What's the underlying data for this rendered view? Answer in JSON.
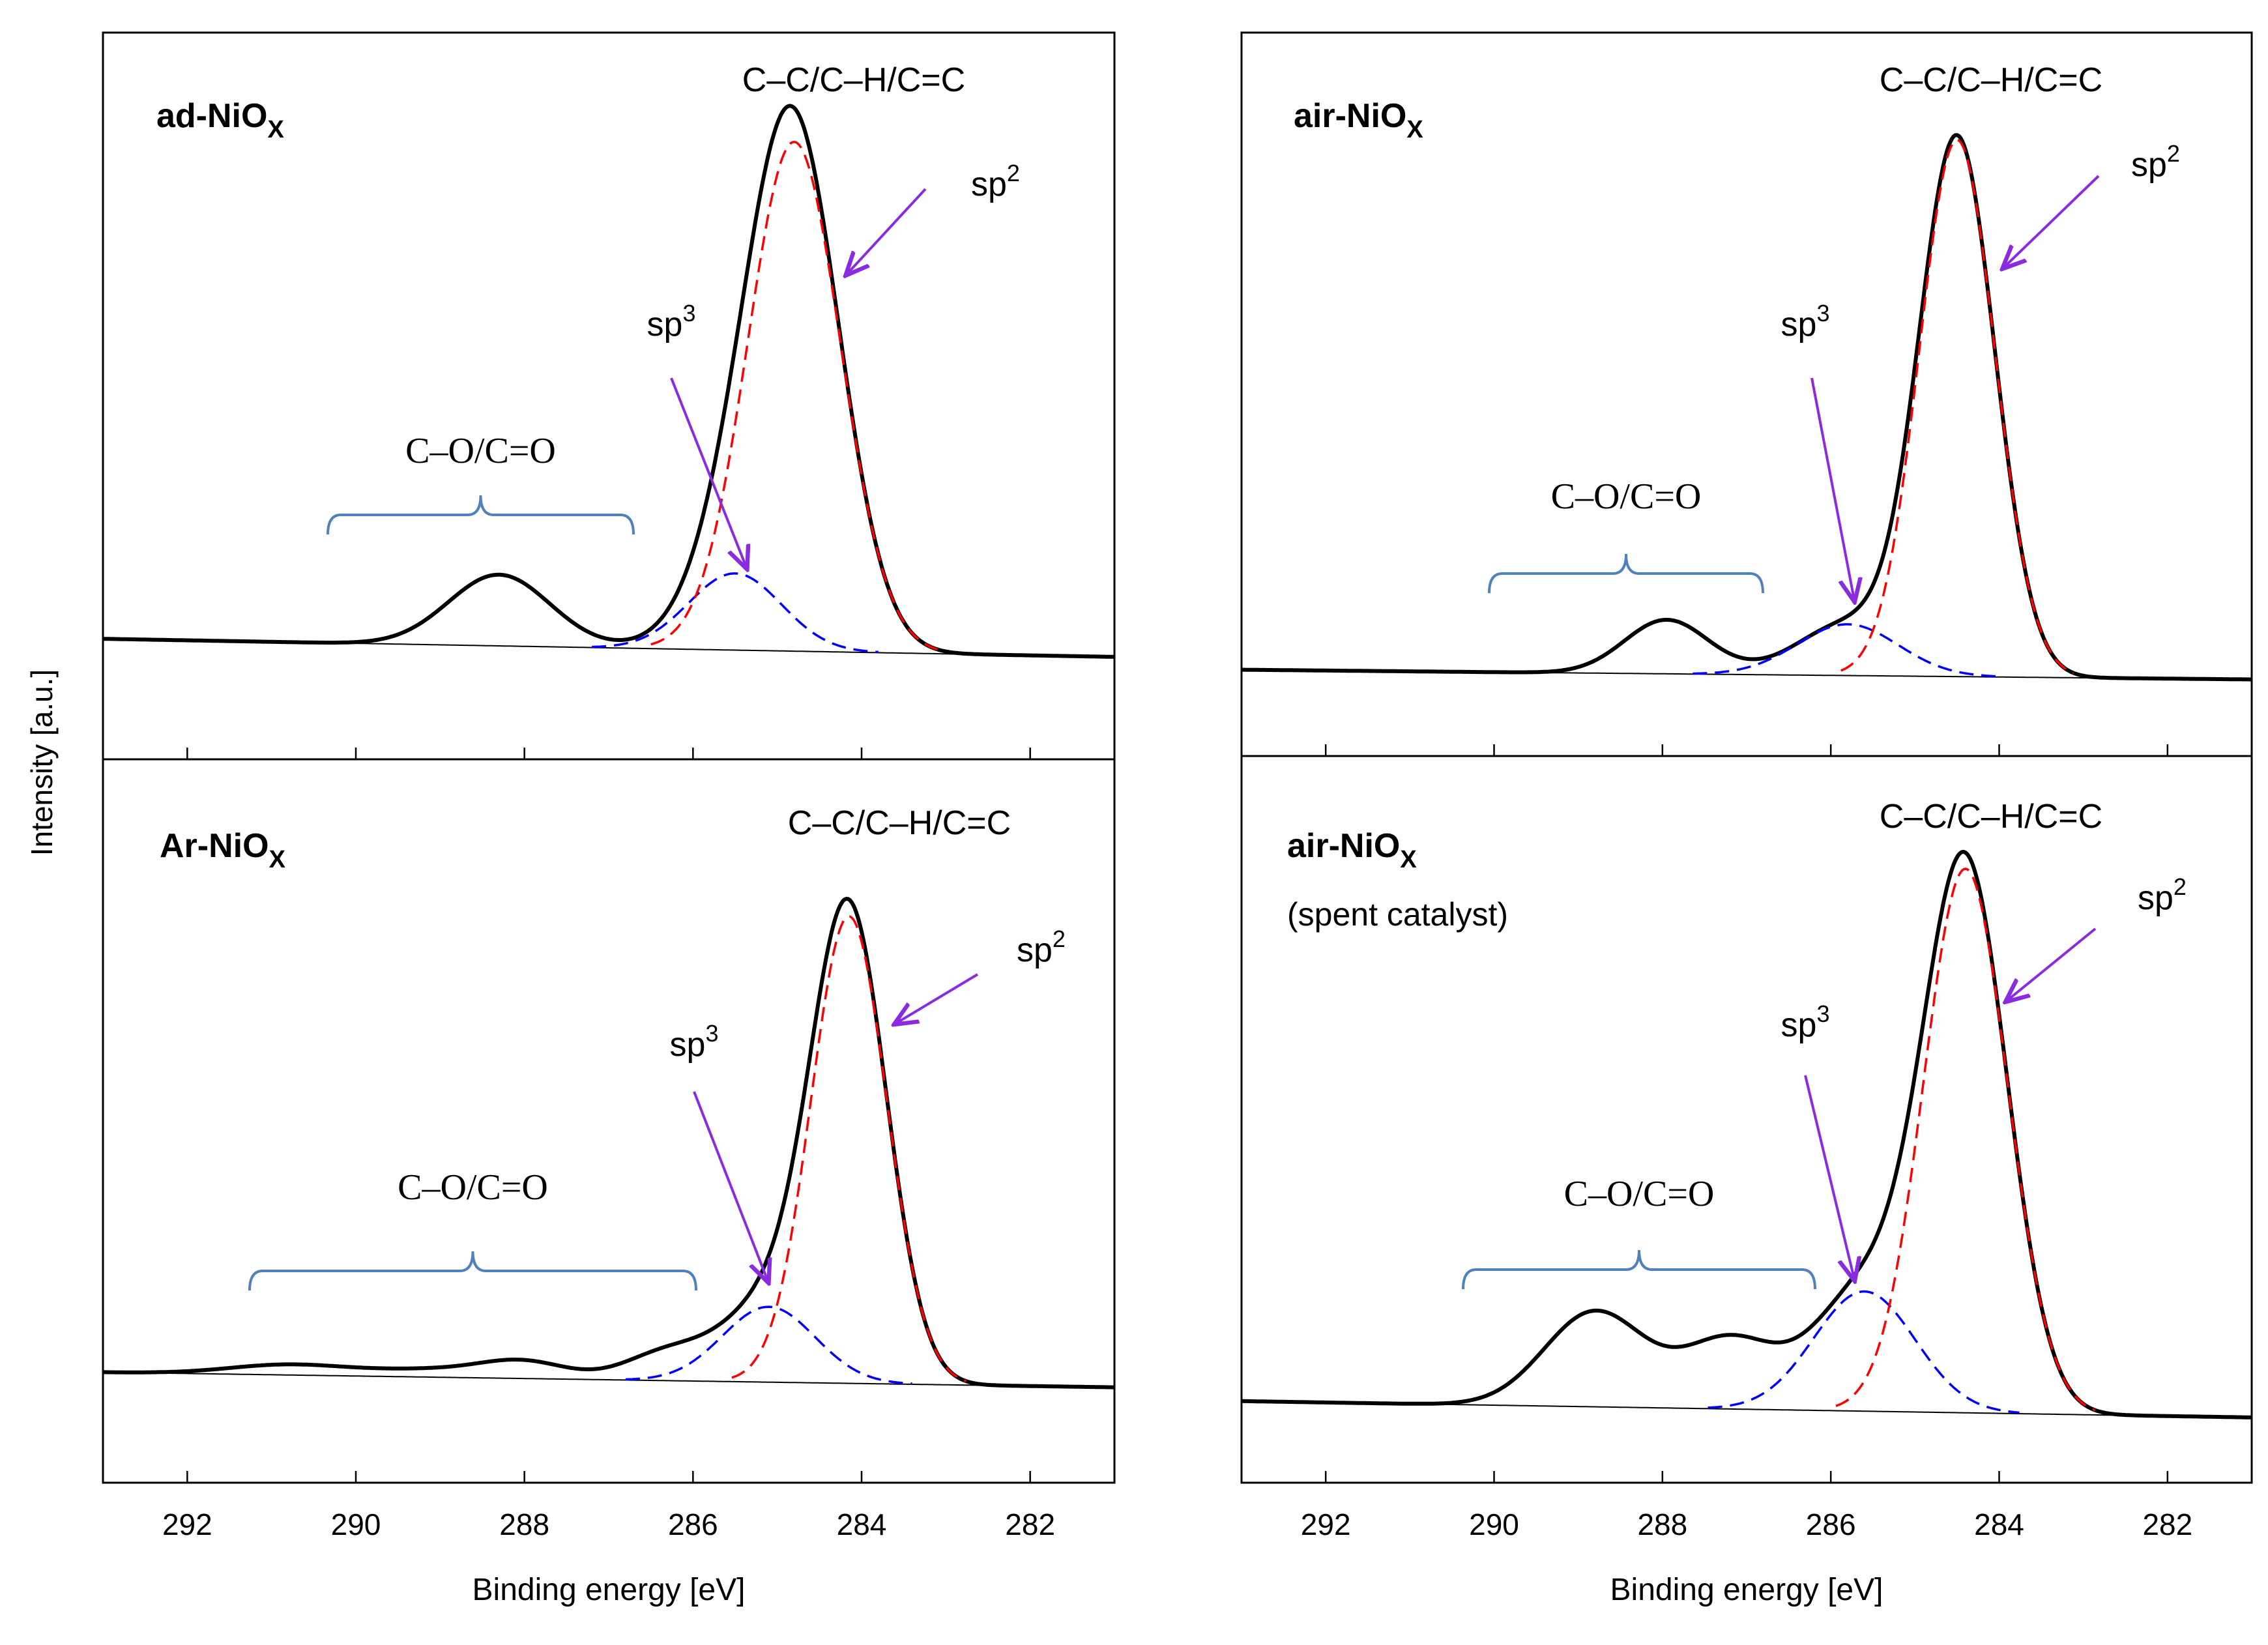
{
  "figure": {
    "ylabel": "Intensity [a.u.]",
    "xlabel": "Binding energy [eV]",
    "tick_labels": [
      "292",
      "290",
      "288",
      "286",
      "284",
      "282"
    ],
    "colors": {
      "total": "#000000",
      "sp2": "#ff0000",
      "sp3": "#0000ff",
      "background": "#000000",
      "arrow": "#8a2be2",
      "bracket": "#4f81bd"
    }
  },
  "chart_data": [
    {
      "type": "line",
      "id": "ad",
      "sample_label": "ad-NiO",
      "sample_sub": "X",
      "sample_extra": "",
      "peak_label": "C–C/C–H/C=C",
      "co_label": "C–O/C=O",
      "sp2_label": "sp",
      "sp2_sup": "2",
      "sp3_label": "sp",
      "sp3_sup": "3",
      "xlabel": "",
      "xlim": [
        293,
        281
      ],
      "ylim": [
        -0.22,
        1.0
      ],
      "baseline_start": 0.0,
      "baseline_end": -0.033,
      "series": [
        {
          "name": "sp2",
          "center": 284.8,
          "height": 0.93,
          "sigma": 0.55
        },
        {
          "name": "sp3",
          "center": 285.5,
          "height": 0.14,
          "sigma": 0.55
        },
        {
          "name": "C-O/C=O",
          "center": 288.3,
          "height": 0.13,
          "sigma": 0.6
        }
      ]
    },
    {
      "type": "line",
      "id": "air",
      "sample_label": "air-NiO",
      "sample_sub": "X",
      "sample_extra": "",
      "peak_label": "C–C/C–H/C=C",
      "co_label": "C–O/C=O",
      "sp2_label": "sp",
      "sp2_sup": "2",
      "sp3_label": "sp",
      "sp3_sup": "3",
      "xlabel": "Binding energy [eV]",
      "xlim": [
        293,
        281
      ],
      "ylim": [
        -0.16,
        1.0
      ],
      "baseline_start": 0.0,
      "baseline_end": -0.018,
      "series": [
        {
          "name": "sp2",
          "center": 284.5,
          "height": 0.995,
          "sigma": 0.45
        },
        {
          "name": "sp3",
          "center": 285.8,
          "height": 0.095,
          "sigma": 0.6
        },
        {
          "name": "C-O/C=O",
          "center": 287.95,
          "height": 0.1,
          "sigma": 0.5
        }
      ]
    },
    {
      "type": "line",
      "id": "ar",
      "sample_label": "Ar-NiO",
      "sample_sub": "X",
      "sample_extra": "",
      "peak_label": "C–C/C–H/C=C",
      "co_label": "C–O/C=O",
      "sp2_label": "sp",
      "sp2_sup": "2",
      "sp3_label": "sp",
      "sp3_sup": "3",
      "xlabel": "Binding energy [eV]",
      "xlim": [
        293,
        281
      ],
      "ylim": [
        -0.22,
        1.0
      ],
      "baseline_start": 0.0,
      "baseline_end": -0.03,
      "series": [
        {
          "name": "sp2",
          "center": 284.15,
          "height": 0.93,
          "sigma": 0.45
        },
        {
          "name": "sp3",
          "center": 285.1,
          "height": 0.15,
          "sigma": 0.55
        },
        {
          "name": "C-O/C=O",
          "center": 288.0,
          "height": 0.03,
          "sigma": 0.5
        },
        {
          "name": "C-O/C=O",
          "center": 290.8,
          "height": 0.02,
          "sigma": 0.7
        },
        {
          "name": "C-O/C=O",
          "center": 286.3,
          "height": 0.055,
          "sigma": 0.5
        },
        {
          "name": "C-O/C=O",
          "center": 289.0,
          "height": 0.015,
          "sigma": 0.8
        }
      ]
    },
    {
      "type": "line",
      "id": "spent",
      "sample_label": "air-NiO",
      "sample_sub": "X",
      "sample_extra": "(spent catalyst)",
      "peak_label": "C–C/C–H/C=C",
      "co_label": "C–O/C=O",
      "sp2_label": "sp",
      "sp2_sup": "2",
      "sp3_label": "sp",
      "sp3_sup": "3",
      "xlabel": "Binding energy [eV]",
      "xlim": [
        293,
        281
      ],
      "ylim": [
        -0.15,
        1.0
      ],
      "baseline_start": 0.0,
      "baseline_end": -0.03,
      "series": [
        {
          "name": "sp2",
          "center": 284.4,
          "height": 1.0,
          "sigma": 0.5
        },
        {
          "name": "sp3",
          "center": 285.6,
          "height": 0.22,
          "sigma": 0.6
        },
        {
          "name": "C-O/C=O",
          "center": 288.8,
          "height": 0.175,
          "sigma": 0.6
        },
        {
          "name": "C-O/C=O",
          "center": 287.2,
          "height": 0.125,
          "sigma": 0.55
        }
      ]
    }
  ]
}
